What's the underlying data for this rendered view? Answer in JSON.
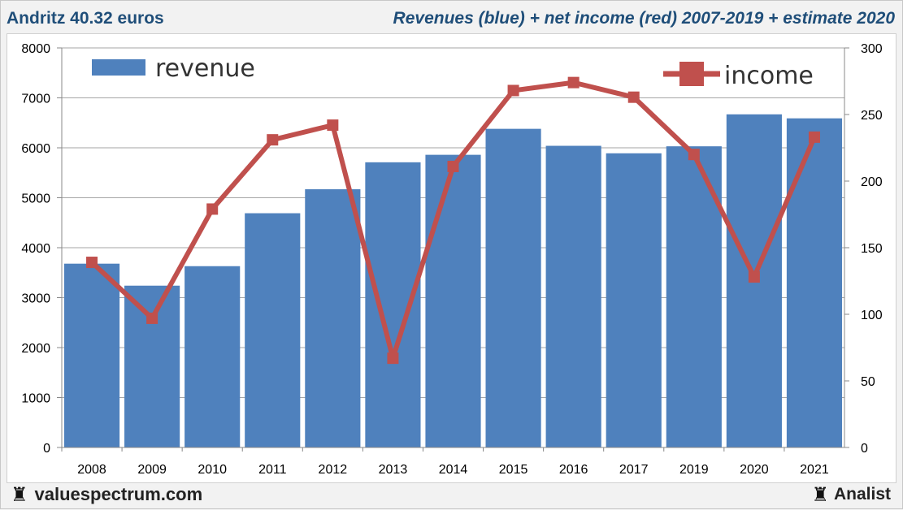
{
  "header": {
    "left_title": "Andritz 40.32 euros",
    "right_title": "Revenues (blue) + net income (red) 2007-2019 + estimate 2020"
  },
  "footer": {
    "left_brand": "valuespectrum.com",
    "left_icon": "rook-icon",
    "right_brand": "Analist",
    "right_icon": "rook-icon"
  },
  "colors": {
    "revenue": "#4f81bd",
    "income": "#c0504d",
    "grid": "#a6a6a6",
    "header_text": "#1f4e79"
  },
  "chart_data": {
    "type": "bar",
    "categories": [
      "2008",
      "2009",
      "2010",
      "2011",
      "2012",
      "2013",
      "2014",
      "2015",
      "2016",
      "2017",
      "2019",
      "2020",
      "2021"
    ],
    "series": [
      {
        "name": "revenue",
        "type": "bar",
        "axis": "left",
        "values": [
          3680,
          3240,
          3630,
          4690,
          5170,
          5710,
          5860,
          6380,
          6040,
          5890,
          6030,
          6670,
          6590
        ]
      },
      {
        "name": "income",
        "type": "line",
        "axis": "right",
        "values": [
          139,
          97,
          179,
          231,
          242,
          67,
          211,
          268,
          274,
          263,
          220,
          128,
          233
        ]
      }
    ],
    "left_axis": {
      "min": 0,
      "max": 8000,
      "ticks": [
        0,
        1000,
        2000,
        3000,
        4000,
        5000,
        6000,
        7000,
        8000
      ]
    },
    "right_axis": {
      "min": 0,
      "max": 300,
      "ticks": [
        0,
        50,
        100,
        150,
        200,
        250,
        300
      ]
    },
    "grid": true,
    "legend": [
      {
        "label": "revenue",
        "placement": "top-left"
      },
      {
        "label": "income",
        "placement": "top-right"
      }
    ]
  }
}
